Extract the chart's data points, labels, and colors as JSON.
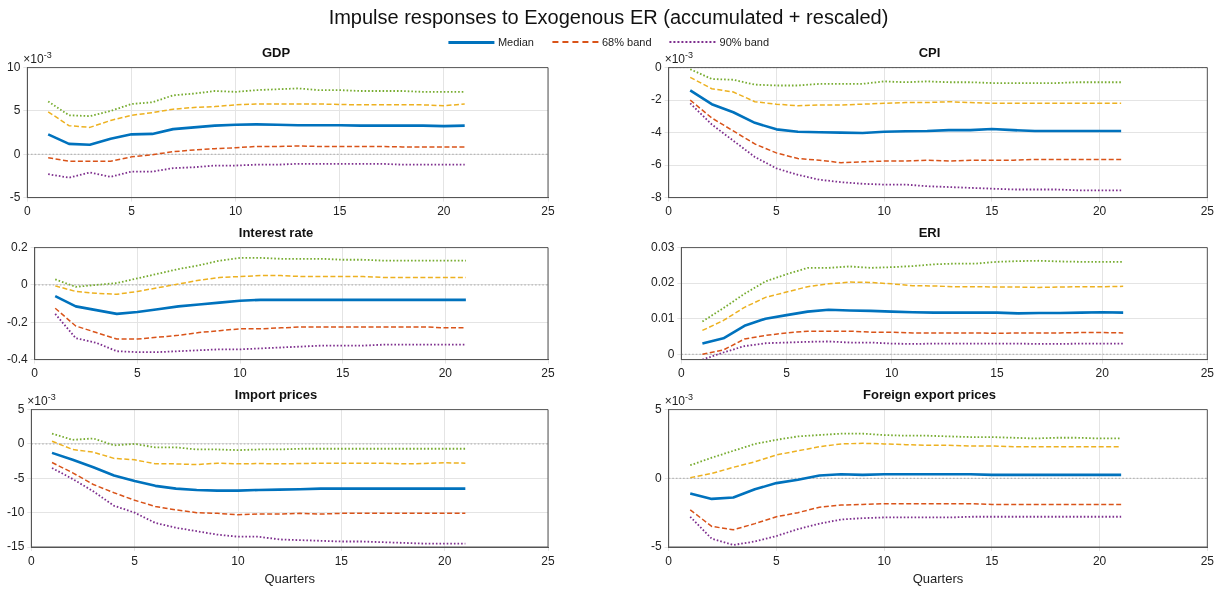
{
  "chart_data": [
    {
      "type": "line",
      "title": "GDP",
      "annotations": [
        "Impulse responses to Exogenous ER (accumulated + rescaled)",
        "×10$^{-3}$"
      ],
      "legend": "top",
      "grid": true,
      "xlim": [
        0,
        25
      ],
      "xticks": [
        0,
        5,
        10,
        15,
        20,
        25
      ],
      "ylim": [
        -5,
        10
      ],
      "yticks": [
        -5,
        0,
        5,
        10
      ],
      "ref_lines": [
        {
          "axis": "y",
          "value": 0,
          "color": "#aaaaaa",
          "line_style": "dotted"
        }
      ],
      "x": [
        1,
        2,
        3,
        4,
        5,
        6,
        7,
        8,
        9,
        10,
        11,
        12,
        13,
        14,
        15,
        16,
        17,
        18,
        19,
        20,
        21
      ],
      "series": [
        {
          "name": "Median",
          "color": "#0072bd",
          "line_style": "solid",
          "values": [
            2.3,
            1.2,
            1.1,
            1.8,
            2.3,
            2.35,
            2.9,
            3.1,
            3.3,
            3.4,
            3.45,
            3.4,
            3.35,
            3.35,
            3.35,
            3.3,
            3.3,
            3.3,
            3.3,
            3.25,
            3.3
          ]
        },
        {
          "color": "#edb120",
          "line_style": "dashed",
          "values": [
            4.9,
            3.3,
            3.1,
            3.9,
            4.5,
            4.8,
            5.2,
            5.4,
            5.5,
            5.7,
            5.8,
            5.8,
            5.8,
            5.8,
            5.75,
            5.7,
            5.7,
            5.7,
            5.7,
            5.6,
            5.8
          ]
        },
        {
          "name": "68% band",
          "color": "#d95319",
          "line_style": "dashed",
          "values": [
            -0.4,
            -0.8,
            -0.8,
            -0.8,
            -0.3,
            -0.05,
            0.3,
            0.5,
            0.65,
            0.75,
            0.9,
            0.9,
            0.95,
            0.9,
            0.9,
            0.9,
            0.9,
            0.85,
            0.85,
            0.85,
            0.85
          ]
        },
        {
          "color": "#77ac30",
          "line_style": "dotted",
          "values": [
            6.1,
            4.5,
            4.4,
            5.0,
            5.8,
            6.0,
            6.8,
            7.0,
            7.3,
            7.2,
            7.4,
            7.5,
            7.6,
            7.4,
            7.4,
            7.3,
            7.3,
            7.3,
            7.2,
            7.2,
            7.2
          ]
        },
        {
          "name": "90% band",
          "color": "#7e2f8e",
          "line_style": "dotted",
          "values": [
            -2.3,
            -2.7,
            -2.1,
            -2.6,
            -2.0,
            -2.0,
            -1.6,
            -1.5,
            -1.3,
            -1.3,
            -1.2,
            -1.2,
            -1.1,
            -1.1,
            -1.1,
            -1.1,
            -1.1,
            -1.2,
            -1.2,
            -1.2,
            -1.2
          ]
        }
      ]
    },
    {
      "type": "line",
      "title": "CPI",
      "annotations": [
        "×10$^{-3}$"
      ],
      "grid": true,
      "xlim": [
        0,
        25
      ],
      "xticks": [
        0,
        5,
        10,
        15,
        20,
        25
      ],
      "ylim": [
        -8,
        0
      ],
      "yticks": [
        -8,
        -6,
        -4,
        -2,
        0
      ],
      "ref_lines": [
        {
          "axis": "y",
          "value": 0,
          "color": "#aaaaaa",
          "line_style": "dotted"
        }
      ],
      "x": [
        1,
        2,
        3,
        4,
        5,
        6,
        7,
        8,
        9,
        10,
        11,
        12,
        13,
        14,
        15,
        16,
        17,
        18,
        19,
        20,
        21
      ],
      "series": [
        {
          "color": "#0072bd",
          "line_style": "solid",
          "values": [
            -1.4,
            -2.25,
            -2.75,
            -3.4,
            -3.8,
            -3.95,
            -3.98,
            -4.0,
            -4.02,
            -3.95,
            -3.92,
            -3.9,
            -3.85,
            -3.85,
            -3.78,
            -3.85,
            -3.9,
            -3.9,
            -3.9,
            -3.9,
            -3.9
          ]
        },
        {
          "color": "#edb120",
          "line_style": "dashed",
          "values": [
            -0.6,
            -1.3,
            -1.5,
            -2.1,
            -2.25,
            -2.35,
            -2.3,
            -2.3,
            -2.25,
            -2.2,
            -2.15,
            -2.15,
            -2.1,
            -2.15,
            -2.2,
            -2.2,
            -2.2,
            -2.2,
            -2.2,
            -2.2,
            -2.2
          ]
        },
        {
          "color": "#d95319",
          "line_style": "dashed",
          "values": [
            -2.0,
            -3.1,
            -3.9,
            -4.7,
            -5.25,
            -5.6,
            -5.7,
            -5.85,
            -5.8,
            -5.75,
            -5.75,
            -5.7,
            -5.75,
            -5.7,
            -5.7,
            -5.7,
            -5.65,
            -5.65,
            -5.65,
            -5.65,
            -5.65
          ]
        },
        {
          "color": "#77ac30",
          "line_style": "dotted",
          "values": [
            -0.1,
            -0.7,
            -0.75,
            -1.05,
            -1.1,
            -1.1,
            -1.0,
            -1.0,
            -1.0,
            -0.85,
            -0.9,
            -0.85,
            -0.9,
            -0.9,
            -0.95,
            -0.95,
            -0.95,
            -0.95,
            -0.9,
            -0.9,
            -0.9
          ]
        },
        {
          "color": "#7e2f8e",
          "line_style": "dotted",
          "values": [
            -2.2,
            -3.5,
            -4.5,
            -5.5,
            -6.2,
            -6.6,
            -6.9,
            -7.05,
            -7.15,
            -7.2,
            -7.2,
            -7.3,
            -7.35,
            -7.4,
            -7.45,
            -7.5,
            -7.5,
            -7.5,
            -7.55,
            -7.55,
            -7.55
          ]
        }
      ]
    },
    {
      "type": "line",
      "title": "Interest rate",
      "grid": true,
      "xlim": [
        0,
        25
      ],
      "xticks": [
        0,
        5,
        10,
        15,
        20,
        25
      ],
      "ylim": [
        -0.4,
        0.2
      ],
      "yticks": [
        -0.4,
        -0.2,
        0,
        0.2
      ],
      "ref_lines": [
        {
          "axis": "y",
          "value": 0,
          "color": "#aaaaaa",
          "line_style": "dotted"
        }
      ],
      "x": [
        1,
        2,
        3,
        4,
        5,
        6,
        7,
        8,
        9,
        10,
        11,
        12,
        13,
        14,
        15,
        16,
        17,
        18,
        19,
        20,
        21
      ],
      "series": [
        {
          "color": "#0072bd",
          "line_style": "solid",
          "values": [
            -0.06,
            -0.115,
            -0.135,
            -0.155,
            -0.145,
            -0.13,
            -0.115,
            -0.105,
            -0.095,
            -0.085,
            -0.08,
            -0.08,
            -0.08,
            -0.08,
            -0.08,
            -0.08,
            -0.08,
            -0.08,
            -0.08,
            -0.08,
            -0.08
          ]
        },
        {
          "color": "#edb120",
          "line_style": "dashed",
          "values": [
            -0.005,
            -0.035,
            -0.045,
            -0.05,
            -0.035,
            -0.015,
            0.005,
            0.025,
            0.04,
            0.045,
            0.05,
            0.05,
            0.045,
            0.045,
            0.045,
            0.045,
            0.04,
            0.04,
            0.04,
            0.04,
            0.04
          ]
        },
        {
          "color": "#d95319",
          "line_style": "dashed",
          "values": [
            -0.125,
            -0.22,
            -0.255,
            -0.29,
            -0.29,
            -0.28,
            -0.27,
            -0.255,
            -0.245,
            -0.235,
            -0.235,
            -0.23,
            -0.225,
            -0.225,
            -0.225,
            -0.225,
            -0.225,
            -0.225,
            -0.225,
            -0.23,
            -0.23
          ]
        },
        {
          "color": "#77ac30",
          "line_style": "dotted",
          "values": [
            0.03,
            -0.01,
            0.0,
            0.01,
            0.035,
            0.06,
            0.085,
            0.105,
            0.13,
            0.145,
            0.145,
            0.14,
            0.14,
            0.14,
            0.135,
            0.135,
            0.13,
            0.13,
            0.13,
            0.13,
            0.13
          ]
        },
        {
          "color": "#7e2f8e",
          "line_style": "dotted",
          "values": [
            -0.155,
            -0.285,
            -0.31,
            -0.355,
            -0.36,
            -0.36,
            -0.355,
            -0.35,
            -0.345,
            -0.345,
            -0.34,
            -0.335,
            -0.33,
            -0.325,
            -0.325,
            -0.325,
            -0.32,
            -0.32,
            -0.32,
            -0.32,
            -0.32
          ]
        }
      ]
    },
    {
      "type": "line",
      "title": "ERI",
      "grid": true,
      "xlim": [
        0,
        25
      ],
      "xticks": [
        0,
        5,
        10,
        15,
        20,
        25
      ],
      "ylim": [
        -0.0015,
        0.03
      ],
      "yticks": [
        0,
        0.01,
        0.02,
        0.03
      ],
      "ref_lines": [
        {
          "axis": "y",
          "value": 0,
          "color": "#aaaaaa",
          "line_style": "dotted"
        }
      ],
      "x": [
        1,
        2,
        3,
        4,
        5,
        6,
        7,
        8,
        9,
        10,
        11,
        12,
        13,
        14,
        15,
        16,
        17,
        18,
        19,
        20,
        21
      ],
      "series": [
        {
          "color": "#0072bd",
          "line_style": "solid",
          "values": [
            0.003,
            0.0045,
            0.008,
            0.01,
            0.011,
            0.012,
            0.0125,
            0.0123,
            0.0122,
            0.012,
            0.0118,
            0.0117,
            0.0117,
            0.0117,
            0.0117,
            0.0115,
            0.0116,
            0.0116,
            0.0117,
            0.0118,
            0.0117
          ]
        },
        {
          "color": "#edb120",
          "line_style": "dashed",
          "values": [
            0.0067,
            0.0095,
            0.0132,
            0.016,
            0.0175,
            0.019,
            0.0198,
            0.0203,
            0.0202,
            0.0198,
            0.0193,
            0.0192,
            0.019,
            0.019,
            0.0189,
            0.0189,
            0.0188,
            0.0189,
            0.019,
            0.019,
            0.0191
          ]
        },
        {
          "color": "#d95319",
          "line_style": "dashed",
          "values": [
            0,
            0.0012,
            0.0043,
            0.0053,
            0.006,
            0.0065,
            0.0065,
            0.0065,
            0.0062,
            0.0062,
            0.006,
            0.006,
            0.006,
            0.006,
            0.0059,
            0.006,
            0.006,
            0.006,
            0.0061,
            0.0061,
            0.006
          ]
        },
        {
          "color": "#77ac30",
          "line_style": "dotted",
          "values": [
            0.0092,
            0.013,
            0.017,
            0.0205,
            0.0225,
            0.0243,
            0.0243,
            0.0247,
            0.0243,
            0.0245,
            0.0248,
            0.0253,
            0.0255,
            0.0255,
            0.026,
            0.0262,
            0.0263,
            0.0261,
            0.026,
            0.026,
            0.026
          ]
        },
        {
          "color": "#7e2f8e",
          "line_style": "dotted",
          "values": [
            -0.0015,
            0.0005,
            0.0023,
            0.0031,
            0.0033,
            0.0035,
            0.0036,
            0.0033,
            0.0033,
            0.003,
            0.0029,
            0.003,
            0.003,
            0.003,
            0.003,
            0.003,
            0.0029,
            0.0029,
            0.003,
            0.003,
            0.003
          ]
        }
      ]
    },
    {
      "type": "line",
      "title": "Import prices",
      "xlabel": "Quarters",
      "annotations": [
        "×10$^{-3}$"
      ],
      "grid": true,
      "xlim": [
        0,
        25
      ],
      "xticks": [
        0,
        5,
        10,
        15,
        20,
        25
      ],
      "ylim": [
        -15,
        5
      ],
      "yticks": [
        -15,
        -10,
        -5,
        0,
        5
      ],
      "ref_lines": [
        {
          "axis": "y",
          "value": 0,
          "color": "#aaaaaa",
          "line_style": "dotted"
        }
      ],
      "x": [
        1,
        2,
        3,
        4,
        5,
        6,
        7,
        8,
        9,
        10,
        11,
        12,
        13,
        14,
        15,
        16,
        17,
        18,
        19,
        20,
        21
      ],
      "series": [
        {
          "color": "#0072bd",
          "line_style": "solid",
          "values": [
            -1.3,
            -2.3,
            -3.4,
            -4.6,
            -5.4,
            -6.1,
            -6.5,
            -6.7,
            -6.8,
            -6.8,
            -6.7,
            -6.65,
            -6.6,
            -6.5,
            -6.5,
            -6.5,
            -6.5,
            -6.5,
            -6.5,
            -6.5,
            -6.5
          ]
        },
        {
          "color": "#edb120",
          "line_style": "dashed",
          "values": [
            0.4,
            -0.8,
            -1.2,
            -2.1,
            -2.3,
            -2.9,
            -2.9,
            -3.0,
            -2.8,
            -2.9,
            -2.85,
            -2.9,
            -2.85,
            -2.8,
            -2.8,
            -2.8,
            -2.8,
            -2.9,
            -2.85,
            -2.75,
            -2.8
          ]
        },
        {
          "color": "#d95319",
          "line_style": "dashed",
          "values": [
            -2.7,
            -4.2,
            -5.9,
            -7.1,
            -8.2,
            -9.1,
            -9.6,
            -10,
            -10.1,
            -10.3,
            -10.2,
            -10.2,
            -10.1,
            -10.2,
            -10.1,
            -10.1,
            -10.1,
            -10.1,
            -10.1,
            -10.1,
            -10.1
          ]
        },
        {
          "color": "#77ac30",
          "line_style": "dotted",
          "values": [
            1.5,
            0.6,
            0.8,
            -0.2,
            0,
            -0.5,
            -0.5,
            -0.8,
            -0.8,
            -0.9,
            -0.8,
            -0.8,
            -0.7,
            -0.7,
            -0.7,
            -0.7,
            -0.7,
            -0.7,
            -0.7,
            -0.7,
            -0.7
          ]
        },
        {
          "color": "#7e2f8e",
          "line_style": "dotted",
          "values": [
            -3.5,
            -5.1,
            -6.9,
            -9.0,
            -10.0,
            -11.5,
            -12.2,
            -12.7,
            -13.2,
            -13.5,
            -13.5,
            -13.9,
            -14.0,
            -14.1,
            -14.2,
            -14.2,
            -14.3,
            -14.4,
            -14.5,
            -14.5,
            -14.5
          ]
        }
      ]
    },
    {
      "type": "line",
      "title": "Foreign export prices",
      "xlabel": "Quarters",
      "annotations": [
        "×10$^{-3}$"
      ],
      "grid": true,
      "xlim": [
        0,
        25
      ],
      "xticks": [
        0,
        5,
        10,
        15,
        20,
        25
      ],
      "ylim": [
        -5,
        5
      ],
      "yticks": [
        -5,
        0,
        5
      ],
      "ref_lines": [
        {
          "axis": "y",
          "value": 0,
          "color": "#aaaaaa",
          "line_style": "dotted"
        }
      ],
      "x": [
        1,
        2,
        3,
        4,
        5,
        6,
        7,
        8,
        9,
        10,
        11,
        12,
        13,
        14,
        15,
        16,
        17,
        18,
        19,
        20,
        21
      ],
      "series": [
        {
          "color": "#0072bd",
          "line_style": "solid",
          "values": [
            -1.1,
            -1.5,
            -1.4,
            -0.8,
            -0.35,
            -0.1,
            0.2,
            0.3,
            0.25,
            0.3,
            0.3,
            0.3,
            0.3,
            0.3,
            0.25,
            0.25,
            0.25,
            0.25,
            0.25,
            0.25,
            0.25
          ]
        },
        {
          "color": "#edb120",
          "line_style": "dashed",
          "values": [
            0.05,
            0.35,
            0.8,
            1.2,
            1.7,
            2.0,
            2.3,
            2.5,
            2.55,
            2.5,
            2.45,
            2.4,
            2.4,
            2.35,
            2.35,
            2.3,
            2.3,
            2.3,
            2.3,
            2.3,
            2.3
          ]
        },
        {
          "color": "#d95319",
          "line_style": "dashed",
          "values": [
            -2.3,
            -3.5,
            -3.75,
            -3.3,
            -2.8,
            -2.5,
            -2.1,
            -1.95,
            -1.9,
            -1.85,
            -1.85,
            -1.85,
            -1.85,
            -1.85,
            -1.9,
            -1.9,
            -1.9,
            -1.9,
            -1.9,
            -1.9,
            -1.9
          ]
        },
        {
          "color": "#77ac30",
          "line_style": "dotted",
          "values": [
            0.95,
            1.5,
            2.0,
            2.5,
            2.8,
            3.05,
            3.15,
            3.25,
            3.25,
            3.15,
            3.1,
            3.1,
            3.05,
            3.0,
            3.0,
            2.95,
            2.9,
            2.95,
            2.95,
            2.9,
            2.9
          ]
        },
        {
          "color": "#7e2f8e",
          "line_style": "dotted",
          "values": [
            -2.8,
            -4.4,
            -4.85,
            -4.6,
            -4.2,
            -3.7,
            -3.3,
            -3.0,
            -2.9,
            -2.85,
            -2.85,
            -2.85,
            -2.85,
            -2.8,
            -2.8,
            -2.8,
            -2.8,
            -2.8,
            -2.8,
            -2.8,
            -2.8
          ]
        }
      ]
    }
  ]
}
